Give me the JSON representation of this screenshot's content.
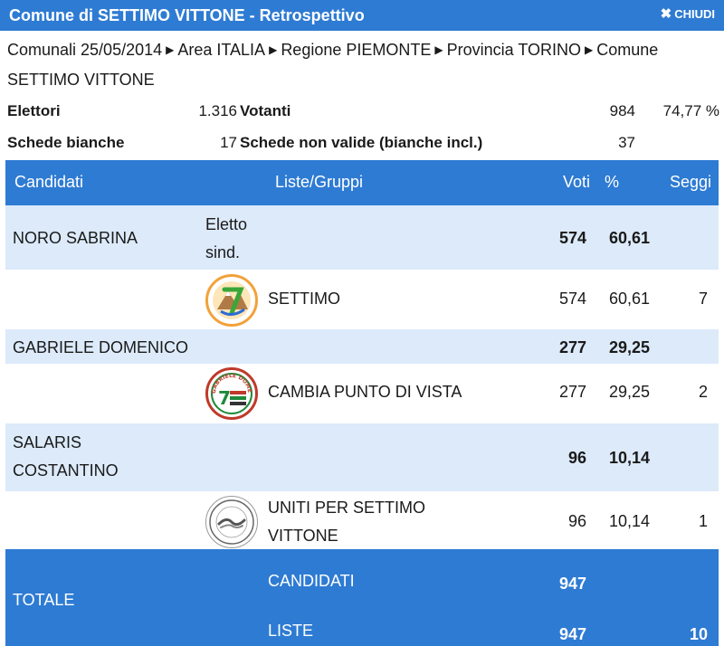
{
  "header": {
    "title": "Comune di SETTIMO VITTONE - Retrospettivo",
    "close_label": "CHIUDI"
  },
  "breadcrumb": {
    "items": [
      "Comunali 25/05/2014",
      "Area ITALIA",
      "Regione PIEMONTE",
      "Provincia TORINO",
      "Comune SETTIMO VITTONE"
    ]
  },
  "stats": {
    "elettori_label": "Elettori",
    "elettori_value": "1.316",
    "votanti_label": "Votanti",
    "votanti_value": "984",
    "votanti_pct": "74,77 %",
    "bianche_label": "Schede bianche",
    "bianche_value": "17",
    "non_valide_label": "Schede non valide (bianche incl.)",
    "non_valide_value": "37"
  },
  "table": {
    "headers": {
      "candidati": "Candidati",
      "liste": "Liste/Gruppi",
      "voti": "Voti",
      "pct": "%",
      "seggi": "Seggi"
    },
    "rows": [
      {
        "name": "NORO SABRINA",
        "note": "Eletto sind.",
        "voti": "574",
        "pct": "60,61"
      },
      {
        "list": "SETTIMO",
        "voti": "574",
        "pct": "60,61",
        "seggi": "7"
      },
      {
        "name": "GABRIELE DOMENICO",
        "voti": "277",
        "pct": "29,25"
      },
      {
        "list": "CAMBIA PUNTO DI VISTA",
        "voti": "277",
        "pct": "29,25",
        "seggi": "2",
        "logo_text": "GABRIELE DOMENICO"
      },
      {
        "name": "SALARIS COSTANTINO",
        "voti": "96",
        "pct": "10,14"
      },
      {
        "list": "UNITI PER SETTIMO VITTONE",
        "voti": "96",
        "pct": "10,14",
        "seggi": "1"
      }
    ],
    "total": {
      "label": "TOTALE",
      "candidati_label": "CANDIDATI",
      "candidati_value": "947",
      "liste_label": "LISTE",
      "liste_value": "947",
      "seggi_value": "10"
    }
  },
  "colors": {
    "header_blue": "#2e7bd3",
    "row_light_blue": "#dceafa"
  },
  "icons": {
    "close": "close-icon",
    "separator": "caret-right-icon"
  }
}
